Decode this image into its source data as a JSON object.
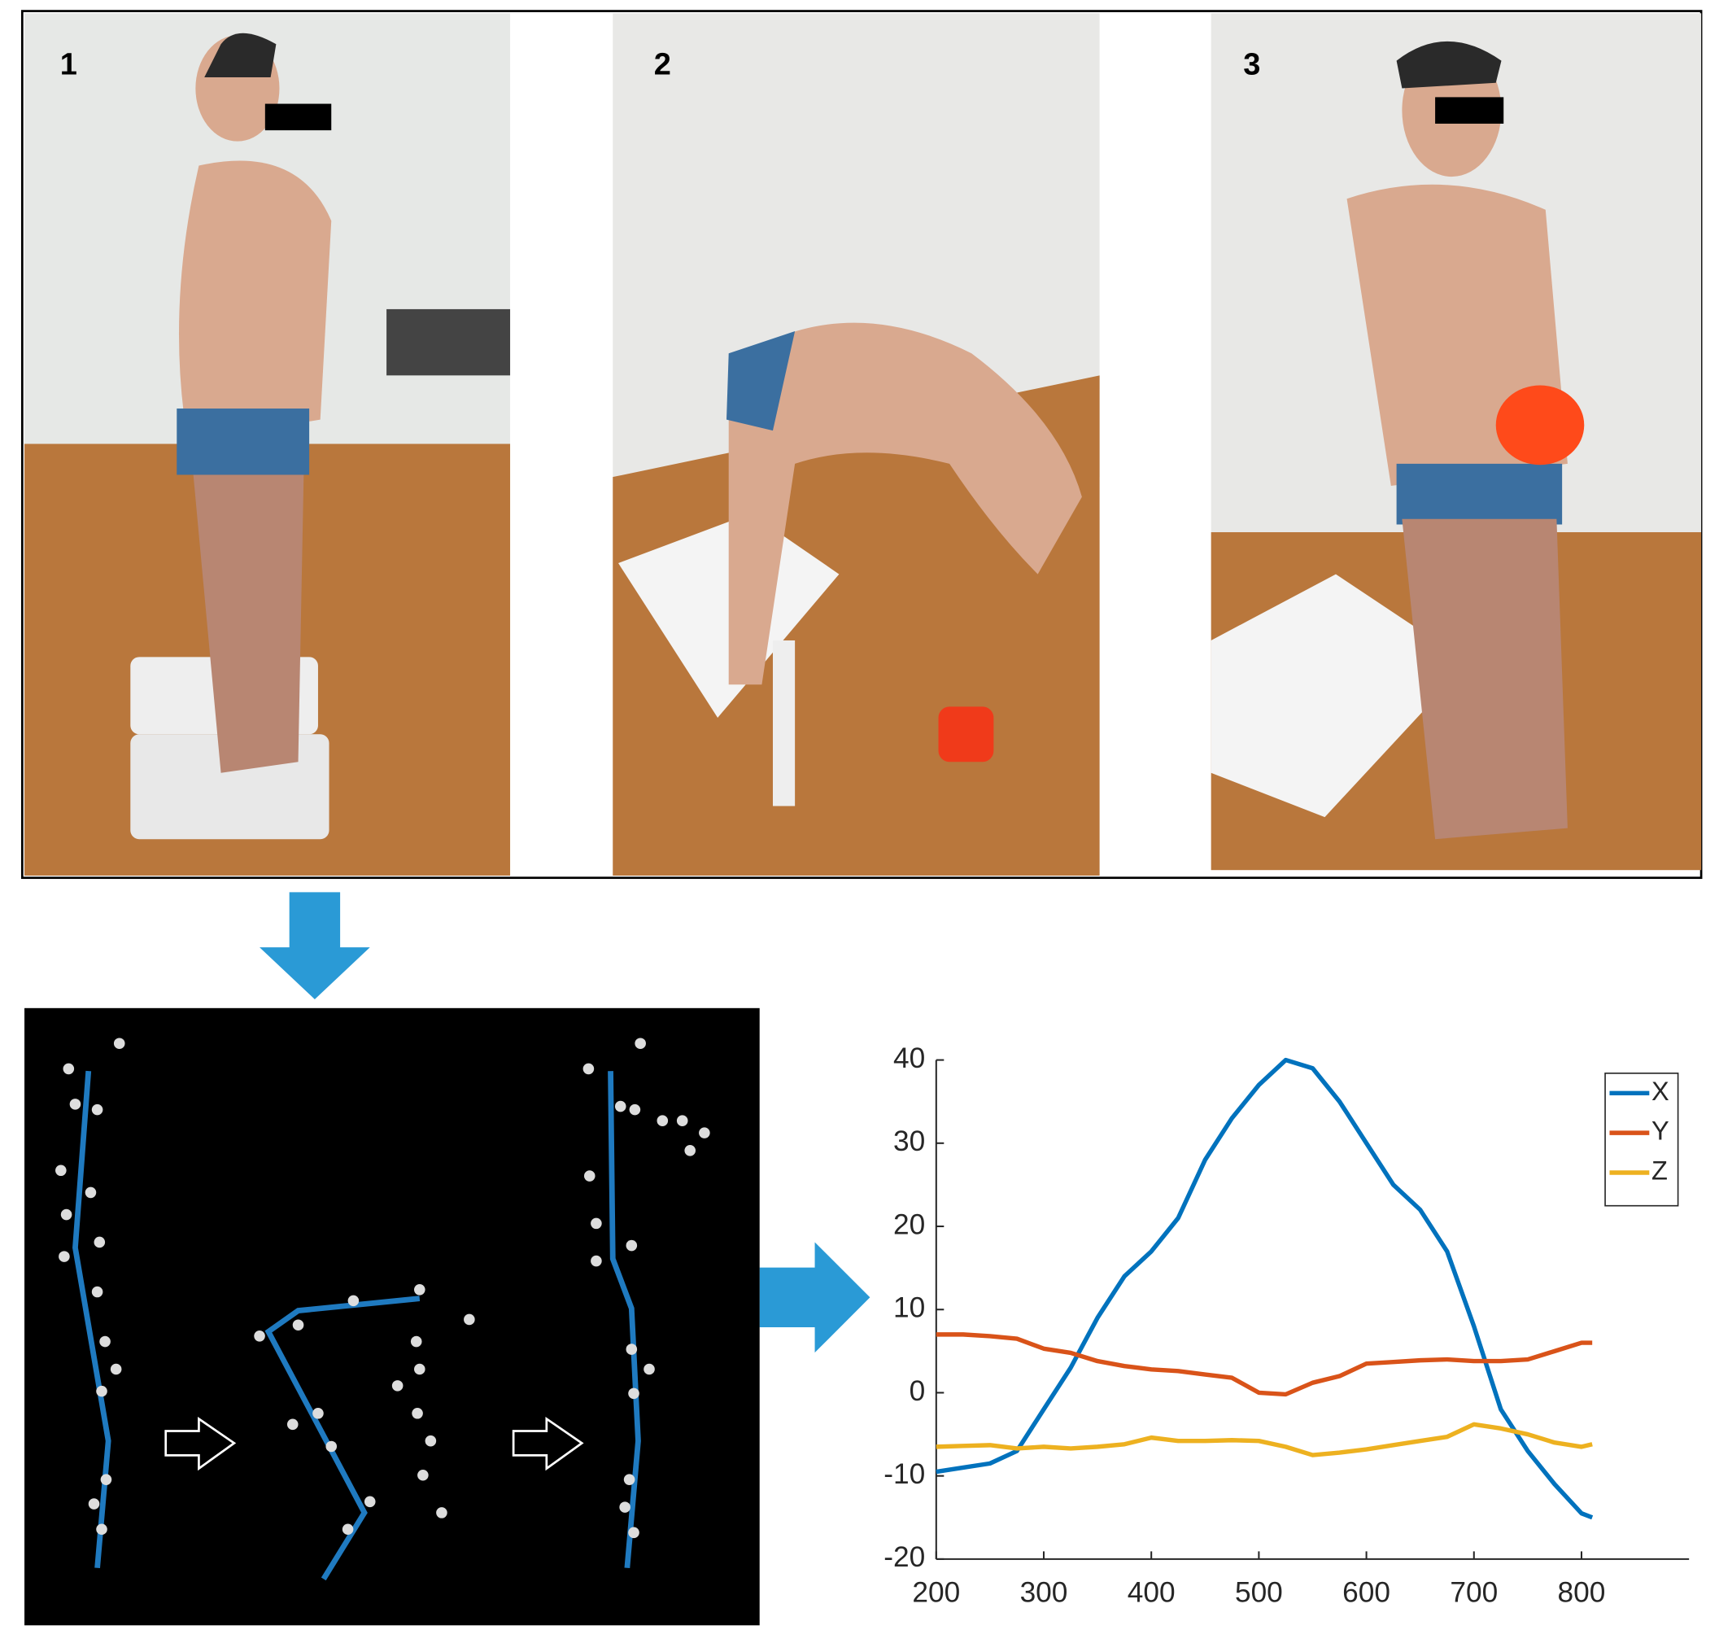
{
  "photo_labels": [
    "1",
    "2",
    "3"
  ],
  "chart_data": {
    "type": "line",
    "x": [
      200,
      225,
      250,
      275,
      300,
      325,
      350,
      375,
      400,
      425,
      450,
      475,
      500,
      525,
      550,
      575,
      600,
      625,
      650,
      675,
      700,
      725,
      750,
      775,
      800,
      810
    ],
    "series": [
      {
        "name": "X",
        "color": "#0072bd",
        "values": [
          -9.5,
          -9,
          -8.5,
          -7,
          -2,
          3,
          9,
          14,
          17,
          21,
          28,
          33,
          37,
          40,
          39,
          35,
          30,
          25,
          22,
          17,
          8,
          -2,
          -7,
          -11,
          -14.5,
          -15
        ]
      },
      {
        "name": "Y",
        "color": "#d95319",
        "values": [
          7,
          7,
          6.8,
          6.5,
          5.3,
          4.8,
          3.8,
          3.2,
          2.8,
          2.6,
          2.2,
          1.8,
          0,
          -0.2,
          1.2,
          2,
          3.5,
          3.7,
          3.9,
          4,
          3.8,
          3.8,
          4,
          5,
          6,
          6
        ]
      },
      {
        "name": "Z",
        "color": "#edb120",
        "values": [
          -6.5,
          -6.4,
          -6.3,
          -6.7,
          -6.5,
          -6.7,
          -6.5,
          -6.2,
          -5.4,
          -5.8,
          -5.8,
          -5.7,
          -5.8,
          -6.5,
          -7.5,
          -7.2,
          -6.8,
          -6.3,
          -5.8,
          -5.3,
          -3.8,
          -4.3,
          -5,
          -6,
          -6.5,
          -6.2
        ]
      }
    ],
    "xlim": [
      200,
      900
    ],
    "xticks": [
      200,
      300,
      400,
      500,
      600,
      700,
      800
    ],
    "ylim": [
      -20,
      40
    ],
    "yticks": [
      -20,
      -10,
      0,
      10,
      20,
      30,
      40
    ],
    "legend": "northeast"
  }
}
